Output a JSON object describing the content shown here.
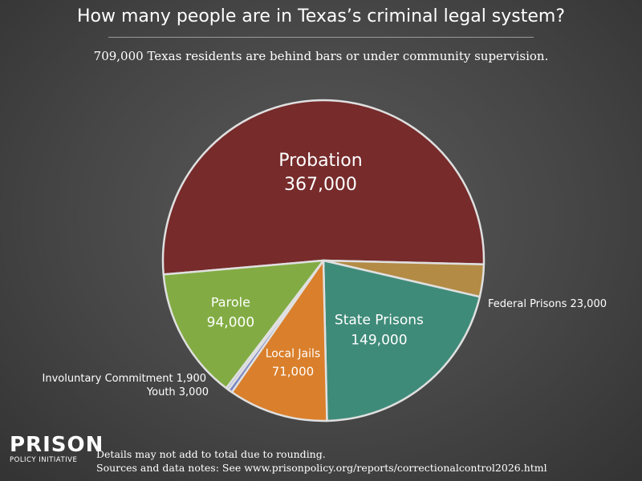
{
  "title": "How many people are in Texas’s criminal legal system?",
  "subtitle": "709,000 Texas residents are behind bars or under community supervision.",
  "footer": {
    "line1": "Details may not add to total due to rounding.",
    "line2": "Sources and data notes: See www.prisonpolicy.org/reports/correctionalcontrol2026.html"
  },
  "logo": {
    "top": "PRISON",
    "bottom": "POLICY INITIATIVE"
  },
  "chart_data": {
    "type": "pie",
    "title": "How many people are in Texas’s criminal legal system?",
    "subtitle": "709,000 Texas residents are behind bars or under community supervision.",
    "slices": [
      {
        "name": "Probation",
        "value_label": "367,000",
        "value": 367000,
        "color": "#772b2b",
        "label_position": "inside"
      },
      {
        "name": "Federal Prisons",
        "value_label": "23,000",
        "value": 23000,
        "color": "#b38b45",
        "label_position": "outside"
      },
      {
        "name": "State Prisons",
        "value_label": "149,000",
        "value": 149000,
        "color": "#3f8b79",
        "label_position": "inside"
      },
      {
        "name": "Local Jails",
        "value_label": "71,000",
        "value": 71000,
        "color": "#da7f2b",
        "label_position": "inside"
      },
      {
        "name": "Youth",
        "value_label": "3,000",
        "value": 3000,
        "color": "#7a88c4",
        "label_position": "outside"
      },
      {
        "name": "Involuntary Commitment",
        "value_label": "1,900",
        "value": 1900,
        "color": "#a8b2e0",
        "label_position": "outside"
      },
      {
        "name": "Parole",
        "value_label": "94,000",
        "value": 94000,
        "color": "#82ac43",
        "label_position": "inside"
      }
    ],
    "slice_border_color": "#e0e0e0"
  }
}
